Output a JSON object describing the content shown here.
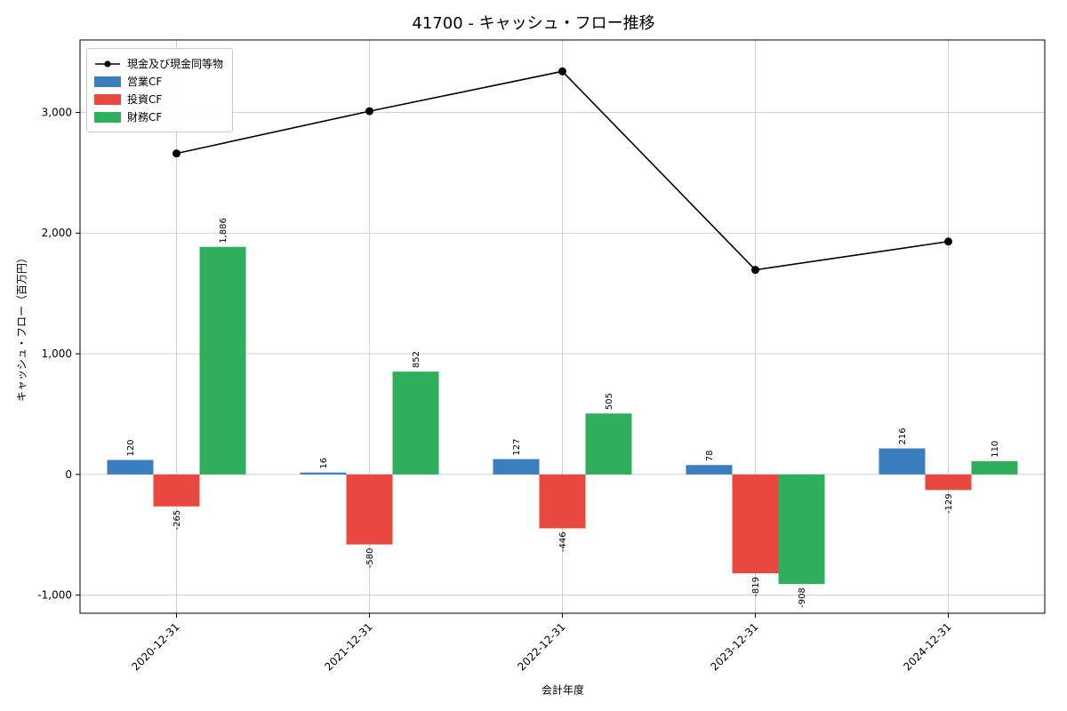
{
  "title": "41700 - キャッシュ・フロー推移",
  "chart_data": {
    "type": "bar",
    "title": "41700 - キャッシュ・フロー推移",
    "xlabel": "会計年度",
    "ylabel": "キャッシュ・フロー（百万円）",
    "categories": [
      "2020-12-31",
      "2021-12-31",
      "2022-12-31",
      "2023-12-31",
      "2024-12-31"
    ],
    "series": [
      {
        "name": "営業CF",
        "kind": "bar",
        "color": "#3a7ebf",
        "values": [
          120,
          16,
          127,
          78,
          216
        ]
      },
      {
        "name": "投資CF",
        "kind": "bar",
        "color": "#e8483f",
        "values": [
          -265,
          -580,
          -446,
          -819,
          -129
        ]
      },
      {
        "name": "財務CF",
        "kind": "bar",
        "color": "#2fae5b",
        "values": [
          1886,
          852,
          505,
          -908,
          110
        ]
      },
      {
        "name": "現金及び現金同等物",
        "kind": "line",
        "color": "#000000",
        "values": [
          2660,
          3010,
          3340,
          1695,
          1930
        ]
      }
    ],
    "ylim": [
      -1150,
      3600
    ],
    "yticks": [
      -1000,
      0,
      1000,
      2000,
      3000
    ],
    "grid": true,
    "grid_color": "#cccccc",
    "legend_position": "upper left"
  }
}
